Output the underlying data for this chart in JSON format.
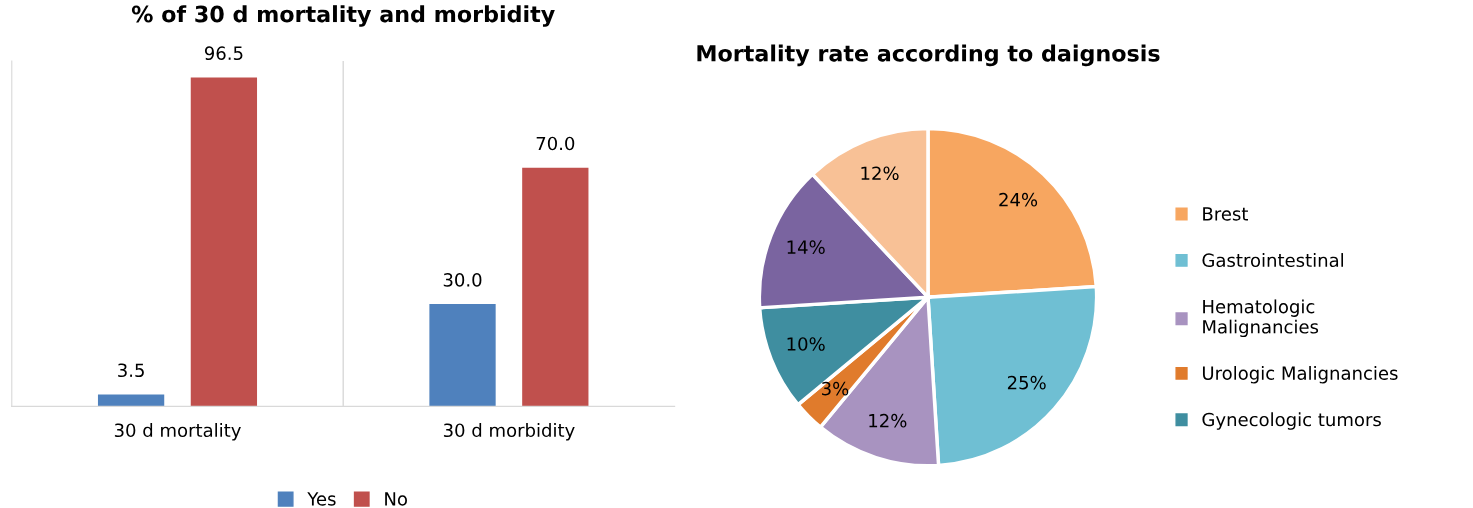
{
  "chart_data": [
    {
      "type": "bar",
      "title": "% of 30 d mortality and morbidity",
      "categories": [
        "30 d mortality",
        "30 d morbidity"
      ],
      "legend": "bottom",
      "grid": false,
      "series": [
        {
          "name": "Yes",
          "color": "#4f81bd",
          "values": [
            3.5,
            30.0
          ],
          "value_labels": [
            "3.5",
            "30.0"
          ]
        },
        {
          "name": "No",
          "color": "#c0504d",
          "values": [
            96.5,
            70.0
          ],
          "value_labels": [
            "96.5",
            "70.0"
          ]
        }
      ]
    },
    {
      "type": "pie",
      "title": "Mortality rate according to daignosis",
      "legend": "right",
      "categories": [
        "Brest",
        "Gastrointestinal",
        "Hematologic Malignancies",
        "Urologic Malignancies",
        "Gynecologic tumors",
        null,
        null
      ],
      "values": [
        24,
        25,
        12,
        3,
        10,
        14,
        12
      ],
      "colors": [
        "#f7a660",
        "#6fbfd3",
        "#a893c0",
        "#e07b2c",
        "#3f8ea0",
        "#7a64a0",
        "#f8c196"
      ],
      "value_labels": [
        "24%",
        "25%",
        "12%",
        "3%",
        "10%",
        "14%",
        "12%"
      ]
    }
  ]
}
